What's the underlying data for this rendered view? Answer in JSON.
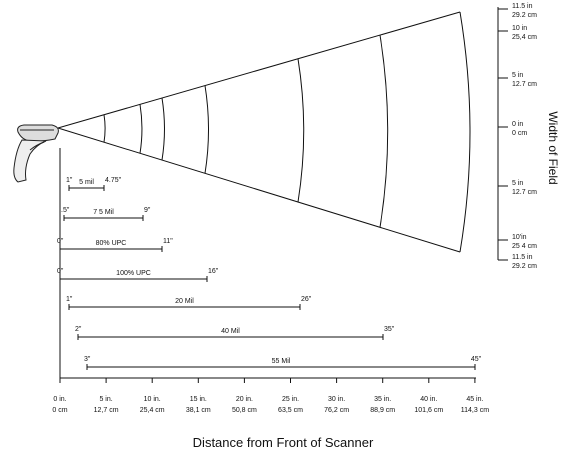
{
  "diagram": {
    "axis_title": "Distance from Front of Scanner",
    "side_title": "Width of Field",
    "distance_labels": [
      {
        "in": "0 in.",
        "cm": "0 cm"
      },
      {
        "in": "5 in.",
        "cm": "12,7 cm"
      },
      {
        "in": "10 in.",
        "cm": "25,4 cm"
      },
      {
        "in": "15 in.",
        "cm": "38,1 cm"
      },
      {
        "in": "20 in.",
        "cm": "50,8 cm"
      },
      {
        "in": "25 in.",
        "cm": "63,5 cm"
      },
      {
        "in": "30 in.",
        "cm": "76,2 cm"
      },
      {
        "in": "35 in.",
        "cm": "88,9 cm"
      },
      {
        "in": "40 in.",
        "cm": "101,6 cm"
      },
      {
        "in": "45 in.",
        "cm": "114,3 cm"
      }
    ],
    "width_labels": [
      {
        "in": "11.5 in",
        "cm": "29.2 cm"
      },
      {
        "in": "10 in",
        "cm": "25,4 cm"
      },
      {
        "in": "5 in",
        "cm": "12.7 cm"
      },
      {
        "in": "0 in",
        "cm": "0 cm"
      },
      {
        "in": "5 in",
        "cm": "12.7 cm"
      },
      {
        "in": "10'in",
        "cm": "25 4 cm"
      },
      {
        "in": "11.5 in",
        "cm": "29.2 cm"
      }
    ],
    "ranges": [
      {
        "name": "5 mil",
        "start": "1\"",
        "end": "4.75\""
      },
      {
        "name": "7 5 Mil",
        "start": ".5\"",
        "end": "9\""
      },
      {
        "name": "80% UPC",
        "start": "0\"",
        "end": "11\""
      },
      {
        "name": "100% UPC",
        "start": "0\"",
        "end": "16\""
      },
      {
        "name": "20 Mil",
        "start": "1\"",
        "end": "26\""
      },
      {
        "name": "40  Mil",
        "start": "2\"",
        "end": "35\""
      },
      {
        "name": "55 Mil",
        "start": "3\"",
        "end": "45\""
      }
    ]
  }
}
